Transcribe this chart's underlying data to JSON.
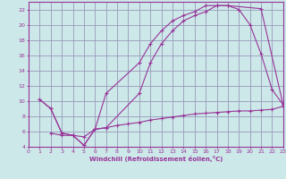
{
  "xlabel": "Windchill (Refroidissement éolien,°C)",
  "bg_color": "#cce8e8",
  "grid_color": "#9999bb",
  "line_color": "#993399",
  "xlim": [
    0,
    23
  ],
  "ylim": [
    4,
    23
  ],
  "yticks": [
    4,
    6,
    8,
    10,
    12,
    14,
    16,
    18,
    20,
    22
  ],
  "xticks": [
    0,
    1,
    2,
    3,
    4,
    5,
    6,
    7,
    8,
    9,
    10,
    11,
    12,
    13,
    14,
    15,
    16,
    17,
    18,
    19,
    20,
    21,
    22,
    23
  ],
  "curve1_x": [
    1,
    2,
    3,
    4,
    5,
    6,
    7,
    10,
    11,
    12,
    13,
    14,
    15,
    16,
    17,
    18,
    21,
    23
  ],
  "curve1_y": [
    10.2,
    9.0,
    5.8,
    5.5,
    4.2,
    6.3,
    6.5,
    11.0,
    15.0,
    17.5,
    19.2,
    20.5,
    21.2,
    21.7,
    22.5,
    22.5,
    22.1,
    9.5
  ],
  "curve2_x": [
    1,
    2,
    3,
    4,
    5,
    6,
    7,
    10,
    11,
    12,
    13,
    14,
    15,
    16,
    17,
    18,
    19,
    20,
    21,
    22,
    23
  ],
  "curve2_y": [
    10.2,
    9.0,
    5.8,
    5.5,
    4.2,
    6.3,
    11.0,
    15.0,
    17.5,
    19.2,
    20.5,
    21.2,
    21.7,
    22.5,
    22.5,
    22.5,
    22.0,
    20.0,
    16.2,
    11.5,
    9.5
  ],
  "curve3_x": [
    2,
    3,
    4,
    5,
    6,
    7,
    8,
    9,
    10,
    11,
    12,
    13,
    14,
    15,
    16,
    17,
    18,
    19,
    20,
    21,
    22,
    23
  ],
  "curve3_y": [
    5.8,
    5.5,
    5.5,
    5.3,
    6.3,
    6.5,
    6.8,
    7.0,
    7.2,
    7.5,
    7.7,
    7.9,
    8.1,
    8.3,
    8.4,
    8.5,
    8.6,
    8.7,
    8.7,
    8.8,
    8.9,
    9.3
  ]
}
